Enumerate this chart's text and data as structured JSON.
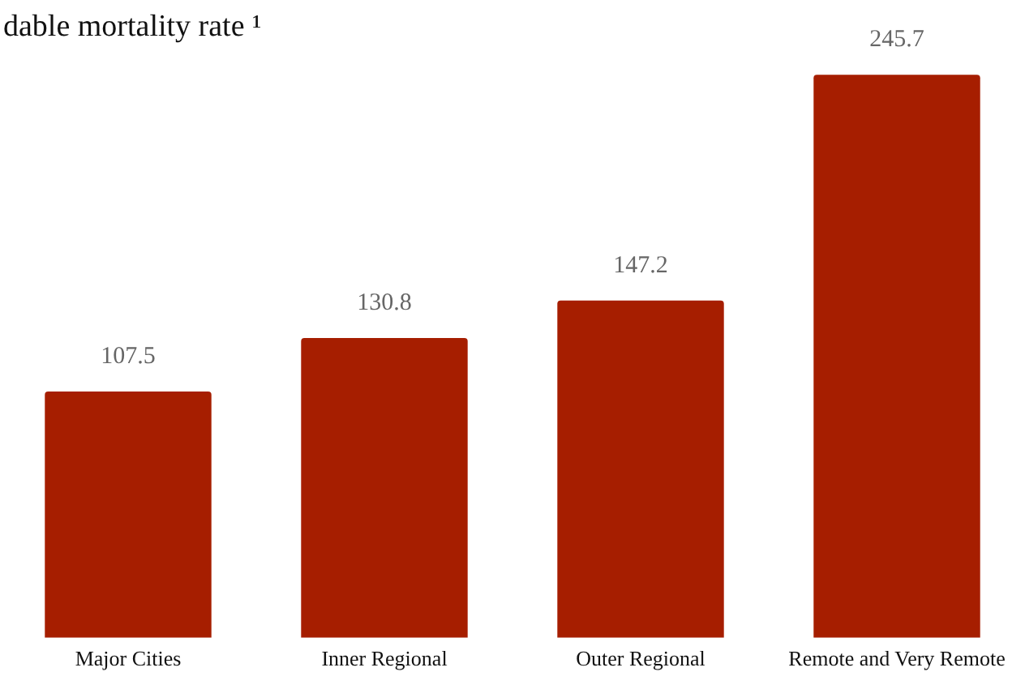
{
  "chart_data": {
    "type": "bar",
    "title": "dable mortality rate ¹",
    "categories": [
      "Major Cities",
      "Inner Regional",
      "Outer Regional",
      "Remote and Very Remote"
    ],
    "values": [
      107.5,
      130.8,
      147.2,
      245.7
    ],
    "color": "#a61e00",
    "data_labels": true,
    "grid": false,
    "legend": false
  }
}
